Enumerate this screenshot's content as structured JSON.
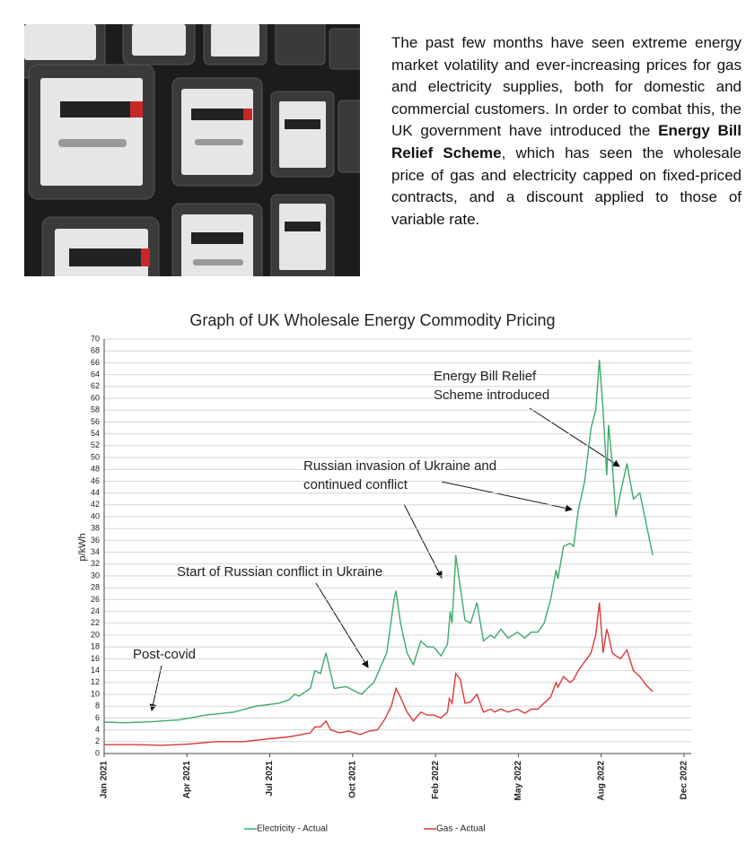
{
  "paragraph": [
    "The past few months have seen extreme energy market volatility and ever-increasing prices for gas and electricity supplies, both for domestic and commercial customers. In order to combat this, the UK government have introduced the ",
    "Energy Bill Relief Scheme",
    ", which has seen the wholesale price of gas and electricity capped on fixed-priced contracts, and a discount applied to those of variable rate."
  ],
  "chart_data": {
    "type": "line",
    "title": "Graph of UK Wholesale Energy Commodity Pricing",
    "y_label": "p/kWh",
    "xlim": [
      0,
      630
    ],
    "xticks": [
      {
        "value": 0,
        "label": "Jan 2021"
      },
      {
        "value": 90,
        "label": "Apr 2021"
      },
      {
        "value": 180,
        "label": "Jul 2021"
      },
      {
        "value": 270,
        "label": "Oct 2021"
      },
      {
        "value": 360,
        "label": "Feb 2022"
      },
      {
        "value": 450,
        "label": "May 2022"
      },
      {
        "value": 540,
        "label": "Aug 2022"
      },
      {
        "value": 630,
        "label": "Dec 2022"
      }
    ],
    "ylim": [
      0,
      70
    ],
    "yticks": [
      0,
      2,
      4,
      6,
      8,
      10,
      12,
      14,
      16,
      18,
      20,
      22,
      24,
      26,
      28,
      30,
      32,
      34,
      36,
      38,
      40,
      42,
      44,
      46,
      48,
      50,
      52,
      54,
      56,
      58,
      60,
      62,
      64,
      66,
      68,
      70
    ],
    "grid": true,
    "series": [
      {
        "name": "Electricity - Actual",
        "color": "#3daa6e",
        "x": [
          0,
          23,
          53,
          82,
          111,
          141,
          165,
          190,
          200,
          207,
          212,
          219,
          224,
          229,
          235,
          241,
          250,
          263,
          273,
          280,
          286,
          293,
          307,
          315,
          317,
          322,
          329,
          336,
          344,
          351,
          358,
          366,
          373,
          376,
          378,
          382,
          387,
          392,
          398,
          405,
          412,
          420,
          424,
          431,
          439,
          449,
          457,
          464,
          471,
          478,
          485,
          491,
          493,
          499,
          506,
          510,
          515,
          522,
          529,
          534,
          538,
          542,
          546,
          548,
          552,
          556,
          561,
          568,
          575,
          582,
          596
        ],
        "values": [
          5.3,
          5.2,
          5.4,
          5.7,
          6.5,
          7,
          8,
          8.5,
          9,
          10,
          9.7,
          10.5,
          11,
          14,
          13.5,
          17,
          11,
          11.3,
          10.5,
          10,
          11,
          12,
          17,
          26,
          27.5,
          22,
          17,
          15,
          19,
          18,
          18,
          16.5,
          18.5,
          24,
          22,
          33.5,
          28,
          22.5,
          22,
          25.5,
          19,
          20,
          19.5,
          21,
          19.5,
          20.5,
          19.5,
          20.5,
          20.5,
          22,
          26,
          31,
          29.5,
          35,
          35.5,
          35,
          41,
          46,
          55,
          58,
          66.5,
          58,
          47,
          55.5,
          49,
          40,
          44,
          49,
          43,
          44,
          33.5
        ]
      },
      {
        "name": "Gas - Actual",
        "color": "#d93a3a",
        "x": [
          0,
          33,
          63,
          92,
          121,
          151,
          180,
          200,
          214,
          224,
          229,
          235,
          241,
          246,
          256,
          266,
          278,
          288,
          297,
          305,
          312,
          317,
          322,
          329,
          336,
          344,
          351,
          358,
          366,
          373,
          375,
          378,
          382,
          387,
          392,
          398,
          405,
          412,
          420,
          424,
          431,
          439,
          449,
          457,
          464,
          471,
          478,
          485,
          491,
          493,
          499,
          506,
          510,
          515,
          522,
          529,
          534,
          538,
          542,
          546,
          548,
          552,
          556,
          561,
          568,
          575,
          582,
          589,
          596
        ],
        "values": [
          1.5,
          1.5,
          1.4,
          1.6,
          2,
          2,
          2.5,
          2.8,
          3.2,
          3.5,
          4.5,
          4.5,
          5.5,
          4,
          3.5,
          3.8,
          3.2,
          3.8,
          4,
          5.8,
          8,
          11,
          9.5,
          7,
          5.5,
          7,
          6.5,
          6.5,
          6,
          7,
          9.3,
          8.5,
          13.5,
          12.5,
          8.5,
          8.7,
          10,
          7,
          7.5,
          7,
          7.5,
          7,
          7.5,
          6.8,
          7.5,
          7.5,
          8.5,
          9.5,
          12,
          11.2,
          13,
          12,
          12.5,
          14,
          15.5,
          17,
          20,
          25.5,
          17,
          21,
          20,
          17,
          16.5,
          16,
          17.5,
          14,
          13,
          11.5,
          10.5
        ]
      }
    ],
    "annotations": [
      {
        "lines": [
          "Post-covid"
        ]
      },
      {
        "lines": [
          "Start of Russian conflict in Ukraine"
        ]
      },
      {
        "lines": [
          "Russian invasion of Ukraine and",
          "continued conflict"
        ]
      },
      {
        "lines": [
          "Energy Bill Relief",
          "Scheme introduced"
        ]
      }
    ]
  }
}
